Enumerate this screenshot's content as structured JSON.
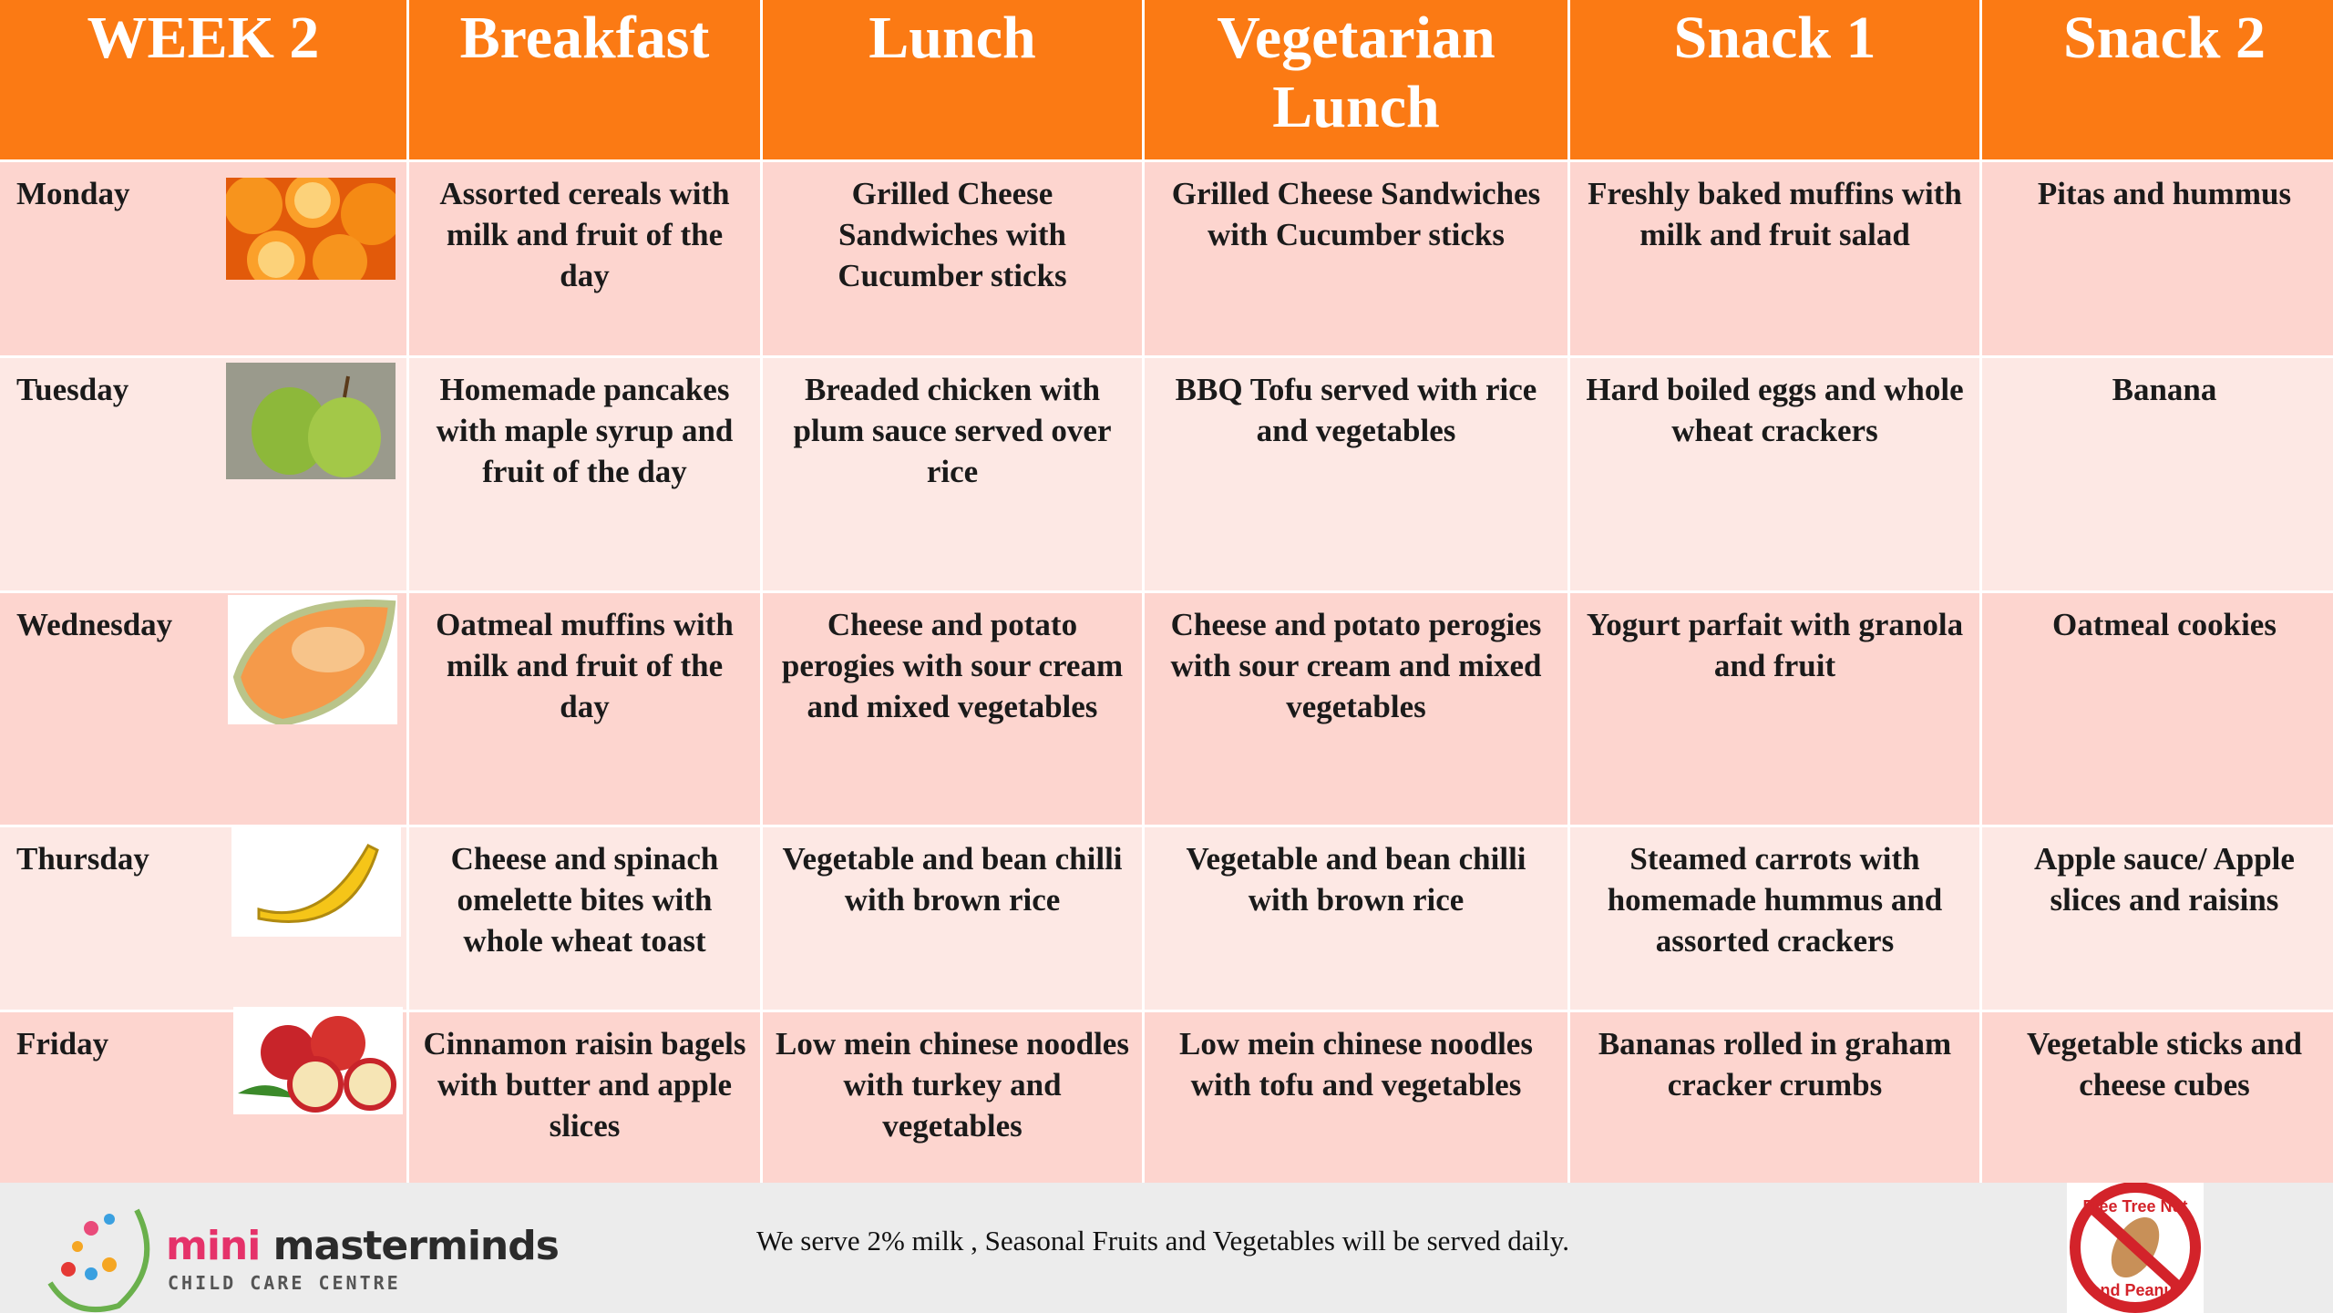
{
  "header": {
    "columns": [
      "WEEK 2",
      "Breakfast",
      "Lunch",
      "Vegetarian Lunch",
      "Snack 1",
      "Snack 2"
    ]
  },
  "rows": [
    {
      "day": "Monday",
      "cells": [
        "Assorted cereals with milk and fruit of the day",
        "Grilled Cheese Sandwiches with Cucumber sticks",
        "Grilled Cheese Sandwiches with Cucumber sticks",
        "Freshly baked muffins with milk and fruit salad",
        "Pitas and hummus"
      ]
    },
    {
      "day": "Tuesday",
      "cells": [
        "Homemade pancakes with maple syrup and fruit of the day",
        "Breaded chicken with plum sauce served over rice",
        "BBQ Tofu served with rice and vegetables",
        "Hard boiled eggs and whole wheat crackers",
        "Banana"
      ]
    },
    {
      "day": "Wednesday",
      "cells": [
        "Oatmeal muffins with milk and fruit of the day",
        "Cheese and potato perogies with sour cream and mixed vegetables",
        "Cheese and potato perogies with sour cream and mixed vegetables",
        "Yogurt parfait with granola and fruit",
        "Oatmeal cookies"
      ]
    },
    {
      "day": "Thursday",
      "cells": [
        "Cheese and spinach omelette bites with whole wheat toast",
        "Vegetable and bean chilli with brown rice",
        "Vegetable and bean chilli with brown rice",
        "Steamed carrots with homemade hummus and assorted crackers",
        "Apple sauce/ Apple slices and raisins"
      ]
    },
    {
      "day": "Friday",
      "cells": [
        "Cinnamon raisin bagels with butter and apple slices",
        "Low mein chinese noodles with turkey and vegetables",
        "Low mein chinese noodles with tofu and vegetables",
        "Bananas rolled in graham cracker crumbs",
        "Vegetable sticks and cheese cubes"
      ]
    }
  ],
  "footer": {
    "logo_mini": "mini",
    "logo_name": "masterminds",
    "logo_sub": "CHILD CARE CENTRE",
    "note": "We serve 2%  milk , Seasonal Fruits and Vegetables will be served daily.",
    "badge_top": "Free Tree Nut",
    "badge_bottom": "and Peanut"
  }
}
